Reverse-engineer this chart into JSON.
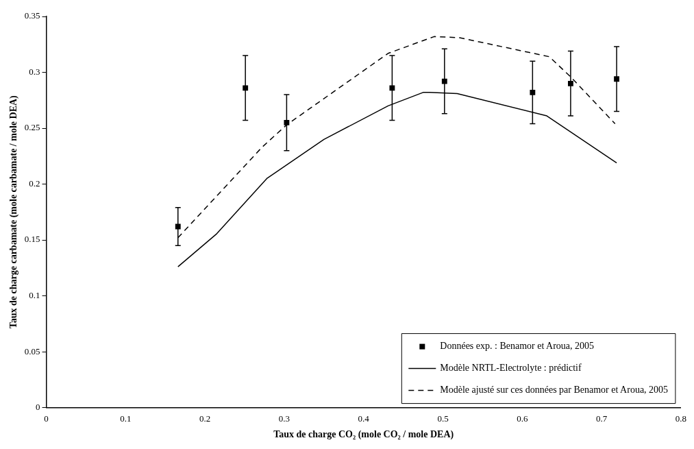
{
  "chart_data": {
    "type": "scatter",
    "xlabel": "Taux de charge CO₂ (mole CO₂ / mole DEA)",
    "ylabel": "Taux de charge carbamate (mole carbamate / mole DEA)",
    "xlim": [
      0,
      0.8
    ],
    "xticks": [
      0,
      0.1,
      0.2,
      0.3,
      0.4,
      0.5,
      0.6,
      0.7,
      0.8
    ],
    "ylim": [
      0,
      0.35
    ],
    "yticks": [
      0,
      0.05,
      0.1,
      0.15,
      0.2,
      0.25,
      0.3,
      0.35
    ],
    "grid": false,
    "legend": "bottom right",
    "series": [
      {
        "name": "Données exp. : Benamor et Aroua, 2005",
        "type": "scatter",
        "color": "#000000",
        "marker": "square",
        "x": [
          0.166,
          0.251,
          0.303,
          0.436,
          0.502,
          0.613,
          0.661,
          0.719
        ],
        "values": [
          0.162,
          0.286,
          0.255,
          0.286,
          0.292,
          0.282,
          0.29,
          0.294
        ],
        "errors": [
          0.017,
          0.029,
          0.025,
          0.029,
          0.029,
          0.028,
          0.029,
          0.029
        ]
      },
      {
        "name": "Modèle NRTL-Electrolyte : prédictif",
        "type": "line",
        "color": "#000000",
        "marker": "none",
        "line_style": "solid",
        "x": [
          0.166,
          0.214,
          0.278,
          0.35,
          0.431,
          0.475,
          0.483,
          0.518,
          0.631,
          0.719
        ],
        "values": [
          0.126,
          0.155,
          0.205,
          0.24,
          0.27,
          0.282,
          0.282,
          0.281,
          0.261,
          0.219
        ]
      },
      {
        "name": "Modèle ajusté sur ces données par Benamor et Aroua, 2005",
        "type": "line",
        "color": "#000000",
        "marker": "none",
        "line_style": "dashed",
        "x": [
          0.166,
          0.272,
          0.303,
          0.431,
          0.489,
          0.521,
          0.634,
          0.661,
          0.717
        ],
        "values": [
          0.152,
          0.233,
          0.253,
          0.317,
          0.332,
          0.331,
          0.314,
          0.296,
          0.254
        ]
      }
    ]
  }
}
